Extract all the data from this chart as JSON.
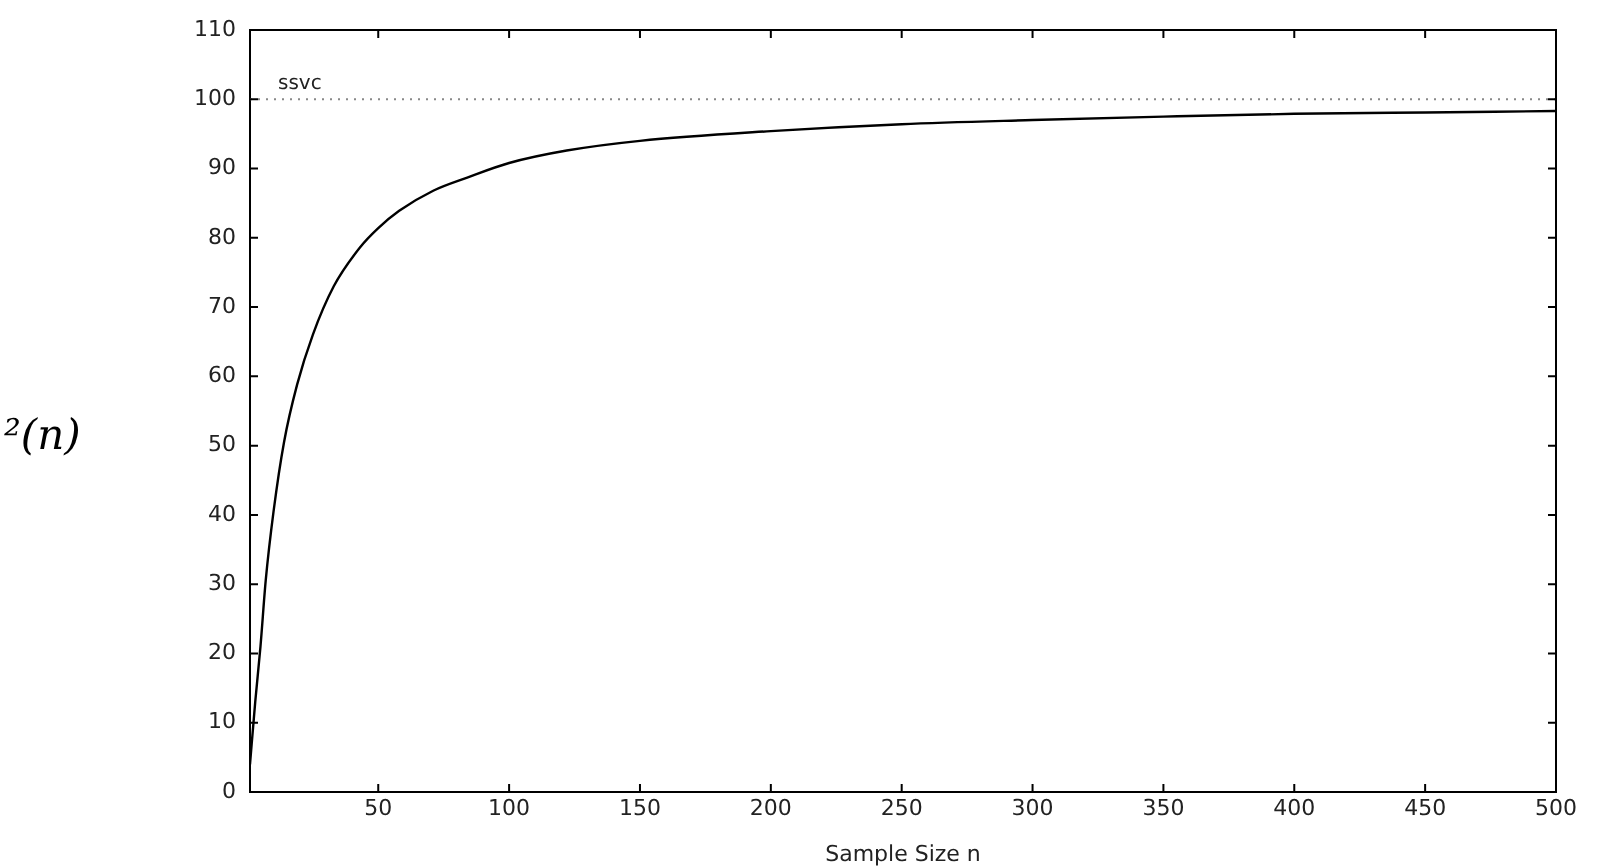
{
  "chart_data": {
    "type": "line",
    "xlabel": "Sample Size n",
    "ylabel": "²(n)",
    "x": [
      1,
      3,
      5,
      7,
      10,
      14,
      19,
      25,
      33,
      43,
      50,
      58,
      71,
      84,
      100,
      122,
      150,
      200,
      250,
      300,
      350,
      400,
      450,
      500
    ],
    "series": [
      {
        "color": "#000000",
        "values": [
          4,
          13,
          21,
          30.5,
          40.5,
          50.5,
          58.8,
          66,
          73,
          78.6,
          81.4,
          83.9,
          86.8,
          88.7,
          90.8,
          92.6,
          94,
          95.4,
          96.4,
          97,
          97.5,
          97.9,
          98.1,
          98.3
        ]
      }
    ],
    "xlim": [
      1,
      500
    ],
    "xticks": [
      50,
      100,
      150,
      200,
      250,
      300,
      350,
      400,
      450,
      500
    ],
    "ylim": [
      0,
      110
    ],
    "yticks": [
      0,
      10,
      20,
      30,
      40,
      50,
      60,
      70,
      80,
      90,
      100,
      110
    ],
    "grid": false,
    "legend": false,
    "marker": "none",
    "line_style": "solid",
    "ref_lines": [
      {
        "axis": "y",
        "value": 100,
        "label": "ssvc",
        "color": "#888888",
        "line_style": "dotted"
      }
    ]
  }
}
